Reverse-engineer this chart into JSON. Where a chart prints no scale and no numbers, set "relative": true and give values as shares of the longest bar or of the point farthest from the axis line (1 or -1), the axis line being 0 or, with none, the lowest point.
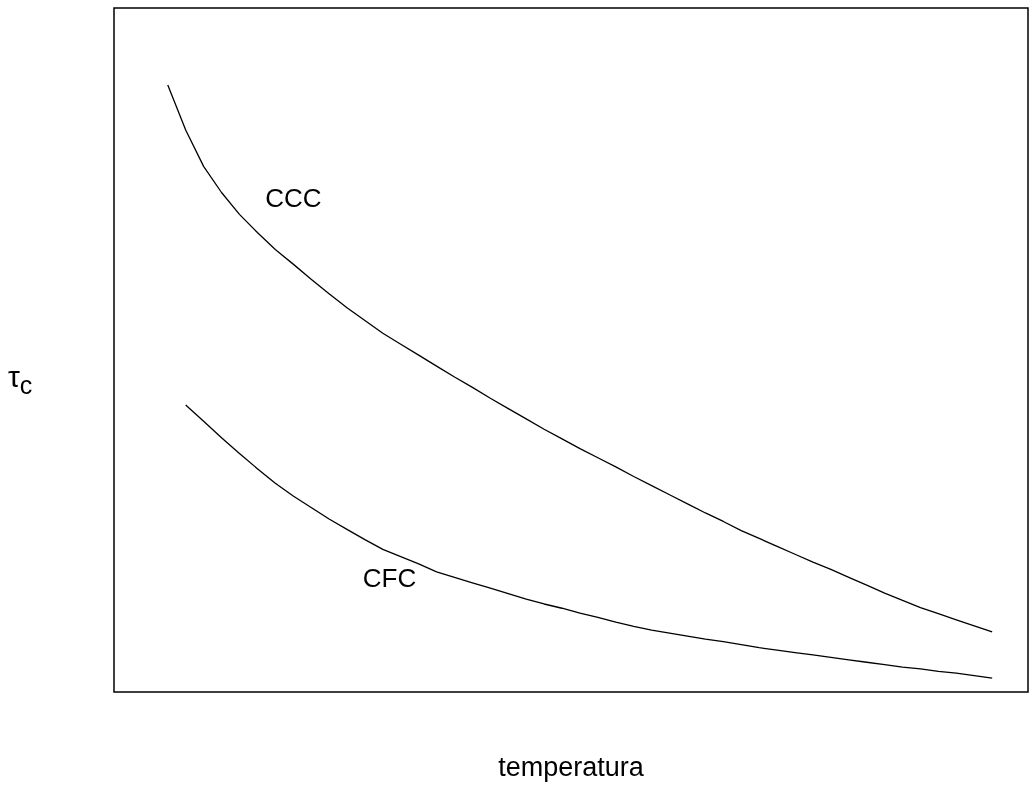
{
  "chart_data": {
    "type": "line",
    "relative": true,
    "xlabel": "temperatura",
    "ylabel": "τ$_{c}$",
    "legend": false,
    "marker": "none",
    "line_style": "solid",
    "categories": [
      null,
      null,
      null,
      null,
      null,
      null,
      null,
      null,
      null,
      null,
      null,
      null,
      null,
      null,
      null,
      null,
      null,
      null,
      null,
      null,
      null,
      null,
      null,
      null,
      null,
      null,
      null,
      null,
      null,
      null,
      null,
      null,
      null,
      null,
      null,
      null,
      null,
      null,
      null,
      null,
      null,
      null,
      null,
      null,
      null,
      null,
      null,
      null,
      null,
      null,
      null,
      null
    ],
    "series": [
      {
        "name": "CCC",
        "color": "#000000",
        "values": [
          null,
          null,
          null,
          1,
          0.926,
          0.866,
          0.823,
          0.787,
          0.757,
          0.729,
          0.705,
          0.68,
          0.656,
          0.633,
          0.612,
          0.591,
          0.573,
          0.555,
          0.537,
          0.519,
          0.502,
          0.484,
          0.467,
          0.45,
          0.433,
          0.417,
          0.401,
          0.386,
          0.371,
          0.355,
          0.34,
          0.325,
          0.31,
          0.295,
          0.281,
          0.266,
          0.253,
          0.24,
          0.227,
          0.214,
          0.202,
          0.189,
          0.176,
          0.163,
          0.151,
          0.139,
          0.129,
          0.119,
          0.109,
          0.099,
          null,
          null
        ]
      },
      {
        "name": "CFC",
        "color": "#000000",
        "values": [
          null,
          null,
          null,
          null,
          0.473,
          0.446,
          0.419,
          0.393,
          0.368,
          0.344,
          0.323,
          0.304,
          0.285,
          0.268,
          0.251,
          0.235,
          0.223,
          0.211,
          0.198,
          0.189,
          0.18,
          0.171,
          0.162,
          0.153,
          0.145,
          0.138,
          0.13,
          0.123,
          0.115,
          0.108,
          0.102,
          0.097,
          0.092,
          0.087,
          0.083,
          0.078,
          0.073,
          0.069,
          0.065,
          0.061,
          0.057,
          0.053,
          0.049,
          0.045,
          0.041,
          0.038,
          0.034,
          0.031,
          0.027,
          0.023,
          null,
          null
        ]
      }
    ]
  }
}
